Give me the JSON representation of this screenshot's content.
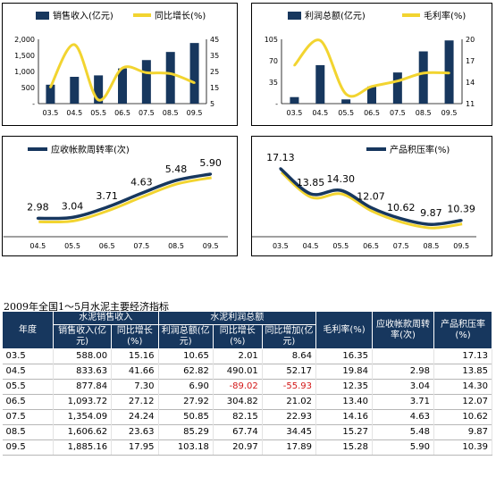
{
  "chart_data": [
    {
      "type": "bar",
      "legend": [
        "销售收入(亿元)",
        "同比增长(%)"
      ],
      "categories": [
        "03.5",
        "04.5",
        "05.5",
        "06.5",
        "07.5",
        "08.5",
        "09.5"
      ],
      "series": [
        {
          "name": "销售收入(亿元)",
          "values": [
            588.0,
            833.63,
            877.84,
            1093.72,
            1354.09,
            1606.62,
            1885.16
          ],
          "axis": "left"
        },
        {
          "name": "同比增长(%)",
          "values": [
            15.16,
            41.66,
            7.3,
            27.12,
            24.24,
            23.63,
            17.95
          ],
          "axis": "right",
          "type": "line"
        }
      ],
      "y_left_ticks": [
        "2,000",
        "1,500",
        "1,000",
        "500",
        "-"
      ],
      "ylim_left": [
        0,
        2000
      ],
      "y_right_ticks": [
        "45",
        "35",
        "25",
        "15",
        "5"
      ],
      "ylim_right": [
        5,
        45
      ]
    },
    {
      "type": "bar",
      "legend": [
        "利润总额(亿元)",
        "毛利率(%)"
      ],
      "categories": [
        "03.5",
        "04.5",
        "05.5",
        "06.5",
        "07.5",
        "08.5",
        "09.5"
      ],
      "series": [
        {
          "name": "利润总额(亿元)",
          "values": [
            10.65,
            62.82,
            6.9,
            27.92,
            50.85,
            85.29,
            103.18
          ],
          "axis": "left"
        },
        {
          "name": "毛利率(%)",
          "values": [
            16.35,
            19.84,
            12.35,
            13.4,
            14.16,
            15.27,
            15.28
          ],
          "axis": "right",
          "type": "line"
        }
      ],
      "y_left_ticks": [
        "105",
        "70",
        "35",
        "-"
      ],
      "ylim_left": [
        0,
        105
      ],
      "y_right_ticks": [
        "20",
        "17",
        "14",
        "11"
      ],
      "ylim_right": [
        11,
        20
      ]
    },
    {
      "type": "line",
      "legend": [
        "应收帐款周转率(次)"
      ],
      "categories": [
        "04.5",
        "05.5",
        "06.5",
        "07.5",
        "08.5",
        "09.5"
      ],
      "values": [
        2.98,
        3.04,
        3.71,
        4.63,
        5.48,
        5.9
      ],
      "labels": [
        "2.98",
        "3.04",
        "3.71",
        "4.63",
        "5.48",
        "5.90"
      ],
      "ylim": [
        2.0,
        6.6
      ]
    },
    {
      "type": "line",
      "legend": [
        "产品积压率(%)"
      ],
      "categories": [
        "03.5",
        "04.5",
        "05.5",
        "06.5",
        "07.5",
        "08.5",
        "09.5"
      ],
      "values": [
        17.13,
        13.85,
        14.3,
        12.07,
        10.62,
        9.87,
        10.39
      ],
      "labels": [
        "17.13",
        "13.85",
        "14.30",
        "12.07",
        "10.62",
        "9.87",
        "10.39"
      ],
      "ylim": [
        8.5,
        18.5
      ]
    }
  ],
  "colors": {
    "bar": "#17375e",
    "line": "#f2d430",
    "header_bg": "#17375e",
    "negative": "#d31717"
  },
  "table": {
    "caption": "2009年全国1～5月水泥主要经济指标",
    "group_headers": {
      "year": "年度",
      "sales": "水泥销售收入",
      "profit": "水泥利润总额",
      "gross_margin": "毛利率(%)",
      "ar_turnover": "应收帐款周转率(次)",
      "inventory": "产品积压率(%)"
    },
    "sub_headers": [
      "销售收入(亿元)",
      "同比增长(%)",
      "利润总额(亿元)",
      "同比增长(%)",
      "同比增加(亿元)"
    ],
    "rows": [
      [
        "03.5",
        "588.00",
        "15.16",
        "10.65",
        "2.01",
        "8.64",
        "16.35",
        "",
        "17.13"
      ],
      [
        "04.5",
        "833.63",
        "41.66",
        "62.82",
        "490.01",
        "52.17",
        "19.84",
        "2.98",
        "13.85"
      ],
      [
        "05.5",
        "877.84",
        "7.30",
        "6.90",
        "-89.02",
        "-55.93",
        "12.35",
        "3.04",
        "14.30"
      ],
      [
        "06.5",
        "1,093.72",
        "27.12",
        "27.92",
        "304.82",
        "21.02",
        "13.40",
        "3.71",
        "12.07"
      ],
      [
        "07.5",
        "1,354.09",
        "24.24",
        "50.85",
        "82.15",
        "22.93",
        "14.16",
        "4.63",
        "10.62"
      ],
      [
        "08.5",
        "1,606.62",
        "23.63",
        "85.29",
        "67.74",
        "34.45",
        "15.27",
        "5.48",
        "9.87"
      ],
      [
        "09.5",
        "1,885.16",
        "17.95",
        "103.18",
        "20.97",
        "17.89",
        "15.28",
        "5.90",
        "10.39"
      ]
    ]
  }
}
